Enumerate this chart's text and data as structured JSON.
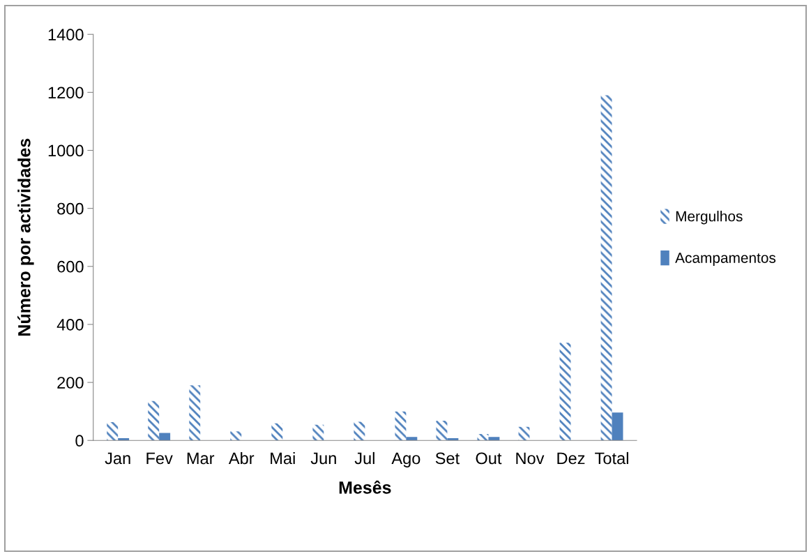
{
  "chart_data": {
    "type": "bar",
    "xlabel": "Mesês",
    "ylabel": "Número por actividades",
    "categories": [
      "Jan",
      "Fev",
      "Mar",
      "Abr",
      "Mai",
      "Jun",
      "Jul",
      "Ago",
      "Set",
      "Out",
      "Nov",
      "Dez",
      "Total"
    ],
    "series": [
      {
        "name": "Mergulhos",
        "color": "#4f81bd",
        "values": [
          63,
          136,
          190,
          31,
          59,
          54,
          64,
          100,
          68,
          22,
          47,
          337,
          1190
        ]
      },
      {
        "name": "Acampamentos",
        "color": "#4f81bd",
        "values": [
          8,
          26,
          0,
          0,
          0,
          0,
          0,
          12,
          8,
          12,
          0,
          0,
          96
        ]
      }
    ],
    "ylim": [
      0,
      1400
    ],
    "yticks": [
      0,
      200,
      400,
      600,
      800,
      1000,
      1200,
      1400
    ],
    "grid": false,
    "legend": "right"
  }
}
